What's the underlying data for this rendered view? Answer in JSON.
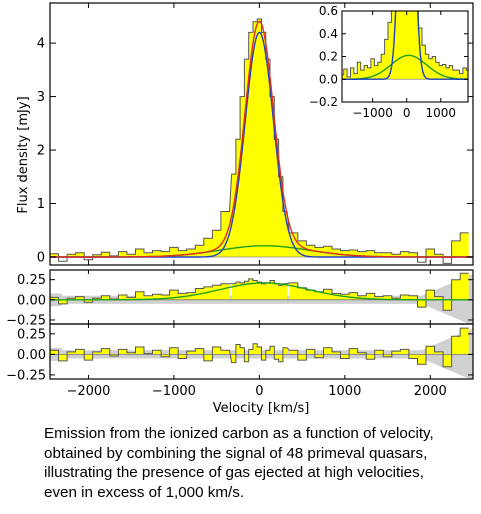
{
  "caption": {
    "lines": [
      "Emission from the ionized carbon as a function of velocity,",
      "obtained by combining the signal of 48 primeval quasars,",
      "illustrating the presence of gas ejected at high velocities,",
      "even in excess of 1,000 km/s."
    ]
  },
  "chart_data": [
    {
      "type": "line",
      "panel": "main",
      "xlabel": "Velocity [km/s]",
      "ylabel": "Flux density [mJy]",
      "xlim": [
        -2450,
        2500
      ],
      "ylim": [
        -0.15,
        4.75
      ],
      "xticks": [
        -2000,
        -1000,
        0,
        1000,
        2000
      ],
      "yticks": [
        0,
        1,
        2,
        3,
        4
      ],
      "grid": false,
      "series": [
        {
          "style": "step-filled",
          "color": "#ffff00",
          "edge": "#555555",
          "x": [
            -2400,
            -2300,
            -2200,
            -2100,
            -2000,
            -1900,
            -1800,
            -1700,
            -1600,
            -1500,
            -1400,
            -1300,
            -1200,
            -1100,
            -1000,
            -900,
            -800,
            -700,
            -600,
            -500,
            -400,
            -300,
            -250,
            -200,
            -150,
            -100,
            -50,
            0,
            50,
            100,
            150,
            200,
            250,
            300,
            400,
            500,
            600,
            700,
            800,
            900,
            1000,
            1100,
            1200,
            1300,
            1400,
            1500,
            1600,
            1700,
            1800,
            1900,
            2000,
            2100,
            2200,
            2300,
            2400
          ],
          "y": [
            0.06,
            -0.08,
            0.05,
            0.08,
            -0.05,
            0.04,
            0.09,
            0.02,
            0.1,
            0.05,
            0.15,
            0.08,
            0.12,
            0.1,
            0.18,
            0.12,
            0.15,
            0.22,
            0.35,
            0.5,
            0.85,
            1.55,
            2.2,
            3.0,
            3.7,
            4.2,
            4.4,
            4.45,
            4.2,
            3.7,
            3.0,
            2.2,
            1.5,
            0.85,
            0.45,
            0.3,
            0.22,
            0.18,
            0.2,
            0.15,
            0.12,
            0.13,
            0.1,
            0.12,
            0.08,
            0.08,
            0.05,
            0.1,
            0.08,
            -0.1,
            0.15,
            0.05,
            -0.12,
            0.3,
            0.45
          ]
        },
        {
          "style": "line",
          "color": "#e03020",
          "model": "total"
        },
        {
          "style": "line",
          "color": "#2040c0",
          "model": "narrow"
        },
        {
          "style": "line",
          "color": "#20a020",
          "model": "broad"
        }
      ]
    },
    {
      "type": "line",
      "panel": "inset",
      "xlim": [
        -1900,
        1800
      ],
      "ylim": [
        -0.2,
        0.6
      ],
      "xticks": [
        -1000,
        0,
        1000
      ],
      "yticks": [
        -0.2,
        0.0,
        0.2,
        0.4,
        0.6
      ],
      "grid": false
    },
    {
      "type": "line",
      "panel": "residual-1",
      "xlim": [
        -2450,
        2500
      ],
      "ylim": [
        -0.3,
        0.37
      ],
      "yticks": [
        -0.25,
        0.0,
        0.25
      ],
      "grid": false
    },
    {
      "type": "line",
      "panel": "residual-2",
      "xlim": [
        -2450,
        2500
      ],
      "ylim": [
        -0.3,
        0.37
      ],
      "yticks": [
        -0.25,
        0.0,
        0.25
      ],
      "grid": false
    }
  ],
  "colors": {
    "fill": "#ffff00",
    "total": "#e03020",
    "narrow": "#2040c0",
    "broad": "#20a020",
    "noise_band": "#d0d0d0",
    "step": "#555555"
  }
}
